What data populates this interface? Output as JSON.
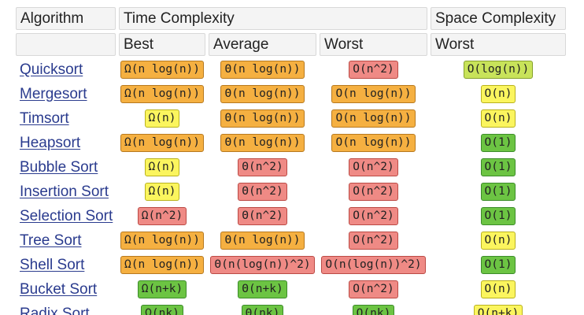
{
  "headers": {
    "algorithm": "Algorithm",
    "time_complexity": "Time Complexity",
    "space_complexity": "Space Complexity",
    "best": "Best",
    "average": "Average",
    "worst": "Worst",
    "space_worst": "Worst"
  },
  "colors": {
    "orange": "#f5b041",
    "red": "#ef8a85",
    "yellow": "#fbf55e",
    "yellow_green": "#c8e35a",
    "green": "#6cc443",
    "link": "#2a3b8e",
    "header_bg": "#f4f4f4"
  },
  "rows": [
    {
      "name": "Quicksort",
      "best": {
        "text": "Ω(n log(n))",
        "color": "orange"
      },
      "average": {
        "text": "Θ(n log(n))",
        "color": "orange"
      },
      "worst": {
        "text": "O(n^2)",
        "color": "red"
      },
      "space": {
        "text": "O(log(n))",
        "color": "yg"
      }
    },
    {
      "name": "Mergesort",
      "best": {
        "text": "Ω(n log(n))",
        "color": "orange"
      },
      "average": {
        "text": "Θ(n log(n))",
        "color": "orange"
      },
      "worst": {
        "text": "O(n log(n))",
        "color": "orange"
      },
      "space": {
        "text": "O(n)",
        "color": "yellow"
      }
    },
    {
      "name": "Timsort",
      "best": {
        "text": "Ω(n)",
        "color": "yellow"
      },
      "average": {
        "text": "Θ(n log(n))",
        "color": "orange"
      },
      "worst": {
        "text": "O(n log(n))",
        "color": "orange"
      },
      "space": {
        "text": "O(n)",
        "color": "yellow"
      }
    },
    {
      "name": "Heapsort",
      "best": {
        "text": "Ω(n log(n))",
        "color": "orange"
      },
      "average": {
        "text": "Θ(n log(n))",
        "color": "orange"
      },
      "worst": {
        "text": "O(n log(n))",
        "color": "orange"
      },
      "space": {
        "text": "O(1)",
        "color": "green"
      }
    },
    {
      "name": "Bubble Sort",
      "best": {
        "text": "Ω(n)",
        "color": "yellow"
      },
      "average": {
        "text": "Θ(n^2)",
        "color": "red"
      },
      "worst": {
        "text": "O(n^2)",
        "color": "red"
      },
      "space": {
        "text": "O(1)",
        "color": "green"
      }
    },
    {
      "name": "Insertion Sort",
      "best": {
        "text": "Ω(n)",
        "color": "yellow"
      },
      "average": {
        "text": "Θ(n^2)",
        "color": "red"
      },
      "worst": {
        "text": "O(n^2)",
        "color": "red"
      },
      "space": {
        "text": "O(1)",
        "color": "green"
      }
    },
    {
      "name": "Selection Sort",
      "best": {
        "text": "Ω(n^2)",
        "color": "red"
      },
      "average": {
        "text": "Θ(n^2)",
        "color": "red"
      },
      "worst": {
        "text": "O(n^2)",
        "color": "red"
      },
      "space": {
        "text": "O(1)",
        "color": "green"
      }
    },
    {
      "name": "Tree Sort",
      "best": {
        "text": "Ω(n log(n))",
        "color": "orange"
      },
      "average": {
        "text": "Θ(n log(n))",
        "color": "orange"
      },
      "worst": {
        "text": "O(n^2)",
        "color": "red"
      },
      "space": {
        "text": "O(n)",
        "color": "yellow"
      }
    },
    {
      "name": "Shell Sort",
      "best": {
        "text": "Ω(n log(n))",
        "color": "orange"
      },
      "average": {
        "text": "Θ(n(log(n))^2)",
        "color": "red"
      },
      "worst": {
        "text": "O(n(log(n))^2)",
        "color": "red"
      },
      "space": {
        "text": "O(1)",
        "color": "green"
      }
    },
    {
      "name": "Bucket Sort",
      "best": {
        "text": "Ω(n+k)",
        "color": "green"
      },
      "average": {
        "text": "Θ(n+k)",
        "color": "green"
      },
      "worst": {
        "text": "O(n^2)",
        "color": "red"
      },
      "space": {
        "text": "O(n)",
        "color": "yellow"
      }
    },
    {
      "name": "Radix Sort",
      "best": {
        "text": "Ω(nk)",
        "color": "green"
      },
      "average": {
        "text": "Θ(nk)",
        "color": "green"
      },
      "worst": {
        "text": "O(nk)",
        "color": "green"
      },
      "space": {
        "text": "O(n+k)",
        "color": "yellow"
      }
    }
  ]
}
